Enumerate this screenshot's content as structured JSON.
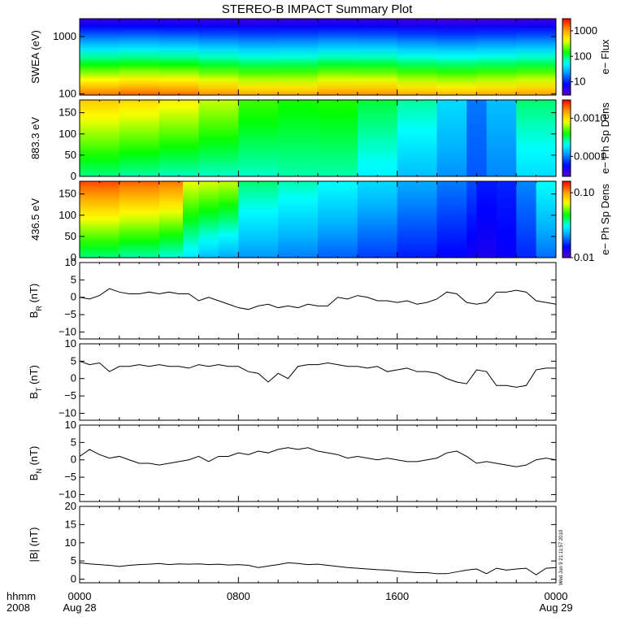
{
  "title": "STEREO-B IMPACT Summary Plot",
  "time_axis": {
    "corner_label": "hhmm",
    "corner_year": "2008",
    "ticks": [
      {
        "hhmm": "0000",
        "date": "Aug 28",
        "hours": 0
      },
      {
        "hhmm": "0800",
        "date": "",
        "hours": 8
      },
      {
        "hhmm": "1600",
        "date": "",
        "hours": 16
      },
      {
        "hhmm": "0000",
        "date": "Aug 29",
        "hours": 24
      }
    ]
  },
  "stamp": "Wed Jun 9 21:11:57 2010",
  "colors": {
    "line": "#000000",
    "frame": "#000000",
    "background": "#ffffff"
  },
  "chart_data": [
    {
      "type": "heatmap",
      "ylabel": "SWEA (eV)",
      "ylog": true,
      "ylim": [
        95,
        2050
      ],
      "yticks": [
        {
          "v": 100,
          "t": "100"
        },
        {
          "v": 1000,
          "t": "1000"
        }
      ],
      "colorbar": {
        "label": "e− Flux",
        "log": true,
        "range": [
          3,
          3000
        ],
        "ticks": [
          {
            "v": 10,
            "t": "10"
          },
          {
            "v": 100,
            "t": "100"
          },
          {
            "v": 1000,
            "t": "1000"
          }
        ]
      },
      "x_hours": [
        0,
        2,
        4,
        6,
        8,
        10,
        12,
        14,
        16,
        18,
        20,
        22,
        24
      ],
      "color_lo_frac": [
        0.88,
        0.9,
        0.92,
        0.88,
        0.85,
        0.82,
        0.85,
        0.88,
        0.85,
        0.82,
        0.82,
        0.85,
        0.85
      ],
      "color_hi_frac": [
        0.05,
        0.06,
        0.05,
        0.05,
        0.04,
        0.04,
        0.05,
        0.05,
        0.04,
        0.03,
        0.03,
        0.04,
        0.04
      ]
    },
    {
      "type": "heatmap",
      "ylabel": "883.3 eV",
      "ylim": [
        0,
        180
      ],
      "yticks": [
        {
          "v": 0,
          "t": "0"
        },
        {
          "v": 50,
          "t": "50"
        },
        {
          "v": 100,
          "t": "100"
        },
        {
          "v": 150,
          "t": "150"
        }
      ],
      "colorbar": {
        "label": "e− Ph Sp Dens",
        "log": true,
        "range": [
          3e-05,
          0.003
        ],
        "ticks": [
          {
            "v": 0.0001,
            "t": "0.0001"
          },
          {
            "v": 0.001,
            "t": "0.0010"
          }
        ]
      },
      "x_hours": [
        0,
        2,
        4,
        6,
        8,
        10,
        12,
        14,
        16,
        18,
        19.5,
        20.5,
        22,
        24
      ],
      "level_top": [
        0.8,
        0.78,
        0.76,
        0.72,
        0.65,
        0.55,
        0.6,
        0.56,
        0.5,
        0.45,
        0.3,
        0.22,
        0.45,
        0.55
      ],
      "level_bottom": [
        0.5,
        0.48,
        0.46,
        0.45,
        0.45,
        0.45,
        0.48,
        0.45,
        0.35,
        0.32,
        0.25,
        0.2,
        0.35,
        0.4
      ]
    },
    {
      "type": "heatmap",
      "ylabel": "436.5 eV",
      "ylim": [
        0,
        180
      ],
      "yticks": [
        {
          "v": 0,
          "t": "0"
        },
        {
          "v": 50,
          "t": "50"
        },
        {
          "v": 100,
          "t": "100"
        },
        {
          "v": 150,
          "t": "150"
        }
      ],
      "colorbar": {
        "label": "e− Ph Sp Dens",
        "log": true,
        "range": [
          0.01,
          0.15
        ],
        "ticks": [
          {
            "v": 0.01,
            "t": "0.01"
          },
          {
            "v": 0.1,
            "t": "0.10"
          }
        ]
      },
      "x_hours": [
        0,
        2,
        4,
        5.2,
        6,
        7,
        8,
        10,
        12,
        14,
        16,
        18,
        19.5,
        20,
        21,
        22,
        23,
        24
      ],
      "level_top": [
        0.95,
        0.92,
        0.9,
        0.88,
        0.55,
        0.85,
        0.52,
        0.48,
        0.45,
        0.4,
        0.35,
        0.28,
        0.25,
        0.18,
        0.15,
        0.2,
        0.35,
        0.5
      ],
      "level_bottom": [
        0.5,
        0.48,
        0.45,
        0.42,
        0.35,
        0.32,
        0.3,
        0.28,
        0.25,
        0.22,
        0.18,
        0.15,
        0.12,
        0.1,
        0.1,
        0.15,
        0.2,
        0.3
      ]
    },
    {
      "type": "line",
      "ylabel_main": "B",
      "ylabel_sub": "R",
      "ylabel_unit": "(nT)",
      "ylim": [
        -12,
        10
      ],
      "yticks": [
        {
          "v": -10,
          "t": "−10"
        },
        {
          "v": -5,
          "t": "−5"
        },
        {
          "v": 0,
          "t": "0"
        },
        {
          "v": 5,
          "t": "5"
        },
        {
          "v": 10,
          "t": "10"
        }
      ],
      "x": [
        0,
        0.5,
        1,
        1.5,
        2,
        2.5,
        3,
        3.5,
        4,
        4.5,
        5,
        5.5,
        6,
        6.5,
        7,
        7.5,
        8,
        8.5,
        9,
        9.5,
        10,
        10.5,
        11,
        11.5,
        12,
        12.5,
        13,
        13.5,
        14,
        14.5,
        15,
        15.5,
        16,
        16.5,
        17,
        17.5,
        18,
        18.5,
        19,
        19.5,
        20,
        20.5,
        21,
        21.5,
        22,
        22.5,
        23,
        23.5,
        24
      ],
      "y": [
        0,
        -0.5,
        0.5,
        2.5,
        1.5,
        1,
        1,
        1.5,
        1,
        1.5,
        1,
        1,
        -1,
        0,
        -1,
        -2,
        -3,
        -3.5,
        -2.5,
        -2,
        -3,
        -2.5,
        -3,
        -2,
        -2.5,
        -2.5,
        0,
        -0.5,
        0.5,
        0,
        -1,
        -1,
        -1.5,
        -1,
        -2,
        -1.5,
        -0.5,
        1.5,
        1,
        -1.5,
        -2,
        -1.5,
        1.5,
        1.5,
        2,
        1.5,
        -1,
        -1.5,
        -2
      ]
    },
    {
      "type": "line",
      "ylabel_main": "B",
      "ylabel_sub": "T",
      "ylabel_unit": "(nT)",
      "ylim": [
        -12,
        10
      ],
      "yticks": [
        {
          "v": -10,
          "t": "−10"
        },
        {
          "v": -5,
          "t": "−5"
        },
        {
          "v": 0,
          "t": "0"
        },
        {
          "v": 5,
          "t": "5"
        },
        {
          "v": 10,
          "t": "10"
        }
      ],
      "x": [
        0,
        0.5,
        1,
        1.5,
        2,
        2.5,
        3,
        3.5,
        4,
        4.5,
        5,
        5.5,
        6,
        6.5,
        7,
        7.5,
        8,
        8.5,
        9,
        9.5,
        10,
        10.5,
        11,
        11.5,
        12,
        12.5,
        13,
        13.5,
        14,
        14.5,
        15,
        15.5,
        16,
        16.5,
        17,
        17.5,
        18,
        18.5,
        19,
        19.5,
        20,
        20.5,
        21,
        21.5,
        22,
        22.5,
        23,
        23.5,
        24
      ],
      "y": [
        5,
        4,
        4.5,
        2,
        3.5,
        3.5,
        4,
        3.5,
        4,
        3.5,
        3.5,
        3,
        4,
        3.5,
        4,
        3.5,
        3.5,
        2,
        1.5,
        -1,
        1.5,
        0,
        3.5,
        4,
        4,
        4.5,
        4,
        3.5,
        3.5,
        3,
        3.5,
        2,
        2.5,
        3,
        2,
        2,
        1.5,
        0,
        -1,
        -1.5,
        2.5,
        2,
        -2,
        -2,
        -2.5,
        -2,
        2.5,
        3,
        3
      ]
    },
    {
      "type": "line",
      "ylabel_main": "B",
      "ylabel_sub": "N",
      "ylabel_unit": "(nT)",
      "ylim": [
        -12,
        10
      ],
      "yticks": [
        {
          "v": -10,
          "t": "−10"
        },
        {
          "v": -5,
          "t": "−5"
        },
        {
          "v": 0,
          "t": "0"
        },
        {
          "v": 5,
          "t": "5"
        },
        {
          "v": 10,
          "t": "10"
        }
      ],
      "x": [
        0,
        0.5,
        1,
        1.5,
        2,
        2.5,
        3,
        3.5,
        4,
        4.5,
        5,
        5.5,
        6,
        6.5,
        7,
        7.5,
        8,
        8.5,
        9,
        9.5,
        10,
        10.5,
        11,
        11.5,
        12,
        12.5,
        13,
        13.5,
        14,
        14.5,
        15,
        15.5,
        16,
        16.5,
        17,
        17.5,
        18,
        18.5,
        19,
        19.5,
        20,
        20.5,
        21,
        21.5,
        22,
        22.5,
        23,
        23.5,
        24
      ],
      "y": [
        1,
        3,
        1.5,
        0.5,
        1,
        0,
        -1,
        -1,
        -1.5,
        -1,
        -0.5,
        0,
        1,
        -0.5,
        1,
        1,
        2,
        1.5,
        2.5,
        2,
        3,
        3.5,
        3,
        3.5,
        2.5,
        2,
        1.5,
        0.5,
        1,
        0.5,
        0,
        0.5,
        0,
        -0.5,
        -0.5,
        0,
        0.5,
        2,
        2.5,
        1,
        -1,
        -0.5,
        -1,
        -1.5,
        -2,
        -1.5,
        0,
        0.5,
        0
      ]
    },
    {
      "type": "line",
      "ylabel_main": "|B|",
      "ylabel_sub": "",
      "ylabel_unit": "(nT)",
      "ylim": [
        -1,
        20
      ],
      "yticks": [
        {
          "v": 0,
          "t": "0"
        },
        {
          "v": 5,
          "t": "5"
        },
        {
          "v": 10,
          "t": "10"
        },
        {
          "v": 15,
          "t": "15"
        },
        {
          "v": 20,
          "t": "20"
        }
      ],
      "x": [
        0,
        0.5,
        1,
        1.5,
        2,
        2.5,
        3,
        3.5,
        4,
        4.5,
        5,
        5.5,
        6,
        6.5,
        7,
        7.5,
        8,
        8.5,
        9,
        9.5,
        10,
        10.5,
        11,
        11.5,
        12,
        12.5,
        13,
        13.5,
        14,
        14.5,
        15,
        15.5,
        16,
        16.5,
        17,
        17.5,
        18,
        18.5,
        19,
        19.5,
        20,
        20.5,
        21,
        21.5,
        22,
        22.5,
        23,
        23.5,
        24
      ],
      "y": [
        4.5,
        4.2,
        4,
        3.8,
        3.5,
        3.8,
        4,
        4.1,
        4.3,
        4,
        4.2,
        4.1,
        4.2,
        4,
        4.1,
        3.9,
        4,
        3.8,
        3.2,
        3.6,
        4,
        4.5,
        4.3,
        4,
        4.1,
        3.8,
        3.5,
        3.2,
        3,
        2.8,
        2.6,
        2.5,
        2.2,
        2,
        1.8,
        1.8,
        1.5,
        1.5,
        2,
        2.5,
        2.8,
        1.5,
        3,
        2.5,
        2.8,
        3,
        1.2,
        3,
        3.2
      ]
    }
  ]
}
